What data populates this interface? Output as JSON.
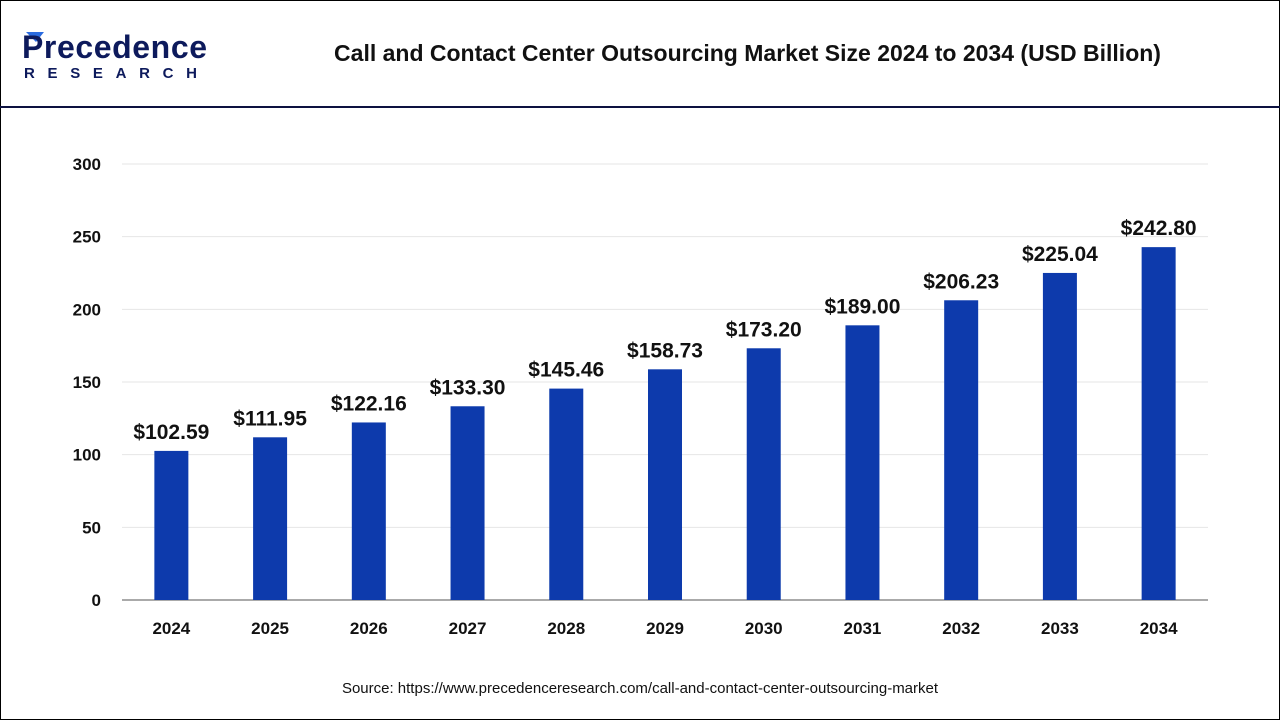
{
  "header": {
    "logo_text": "Precedence",
    "logo_subtext": "RESEARCH",
    "title": "Call and Contact Center Outsourcing Market Size 2024 to 2034 (USD Billion)"
  },
  "source": "Source: https://www.precedenceresearch.com/call-and-contact-center-outsourcing-market",
  "colors": {
    "bar": "#0d3aac",
    "header_rule": "#0d1140",
    "logo_dark": "#0d1a5c",
    "logo_light": "#2a6be0"
  },
  "chart_data": {
    "type": "bar",
    "title": "Call and Contact Center Outsourcing Market Size 2024 to 2034 (USD Billion)",
    "categories": [
      "2024",
      "2025",
      "2026",
      "2027",
      "2028",
      "2029",
      "2030",
      "2031",
      "2032",
      "2033",
      "2034"
    ],
    "values": [
      102.59,
      111.95,
      122.16,
      133.3,
      145.46,
      158.73,
      173.2,
      189.0,
      206.23,
      225.04,
      242.8
    ],
    "data_labels": [
      "$102.59",
      "$111.95",
      "$122.16",
      "$133.30",
      "$145.46",
      "$158.73",
      "$173.20",
      "$189.00",
      "$206.23",
      "$225.04",
      "$242.80"
    ],
    "yticks": [
      0,
      50,
      100,
      150,
      200,
      250,
      300
    ],
    "ylim": [
      0,
      300
    ],
    "xlabel": "",
    "ylabel": "",
    "grid": true,
    "legend": "none"
  }
}
